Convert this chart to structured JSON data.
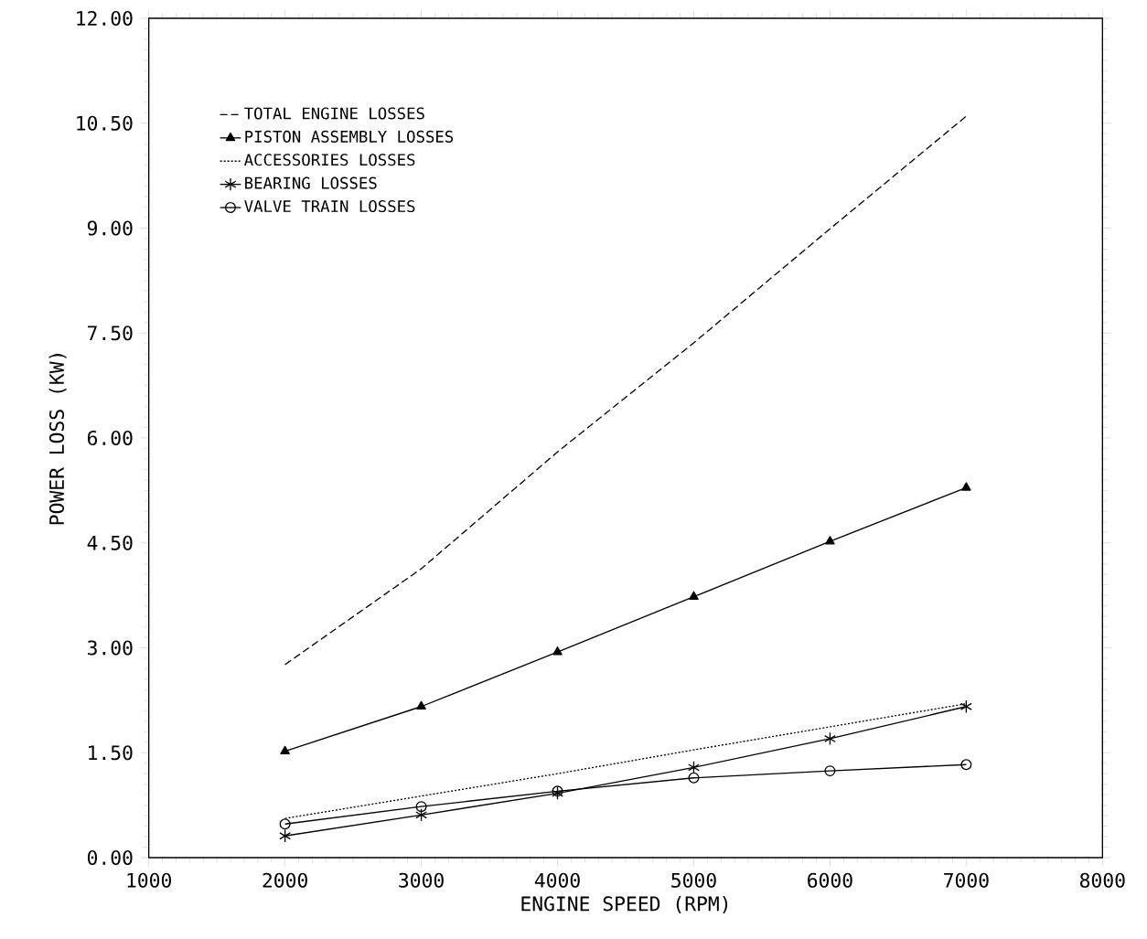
{
  "chart_data": {
    "type": "line",
    "xlabel": "ENGINE SPEED (RPM)",
    "ylabel": "POWER LOSS (KW)",
    "x": [
      2000,
      3000,
      4000,
      5000,
      6000,
      7000
    ],
    "series": [
      {
        "name": "TOTAL ENGINE LOSSES",
        "color": "#000000",
        "line_style": "dashed",
        "marker": "none",
        "values": [
          2.76,
          4.13,
          5.8,
          7.36,
          8.99,
          10.6
        ]
      },
      {
        "name": "PISTON ASSEMBLY LOSSES",
        "color": "#000000",
        "line_style": "solid",
        "marker": "triangle",
        "values": [
          1.52,
          2.16,
          2.94,
          3.73,
          4.52,
          5.29
        ]
      },
      {
        "name": "ACCESSORIES LOSSES",
        "color": "#000000",
        "line_style": "dotted",
        "marker": "none",
        "values": [
          0.56,
          0.88,
          1.2,
          1.54,
          1.87,
          2.2
        ]
      },
      {
        "name": "BEARING LOSSES",
        "color": "#000000",
        "line_style": "solid",
        "marker": "cross",
        "values": [
          0.31,
          0.61,
          0.92,
          1.29,
          1.7,
          2.16
        ]
      },
      {
        "name": "VALVE TRAIN LOSSES",
        "color": "#000000",
        "line_style": "solid",
        "marker": "circle",
        "values": [
          0.48,
          0.73,
          0.95,
          1.14,
          1.24,
          1.33
        ]
      }
    ],
    "xlim": [
      1000,
      8000
    ],
    "xticks": [
      1000,
      2000,
      3000,
      4000,
      5000,
      6000,
      7000,
      8000
    ],
    "ylim": [
      0,
      12
    ],
    "yticks": [
      {
        "value": 0,
        "label": "0.00"
      },
      {
        "value": 1.5,
        "label": "1.50"
      },
      {
        "value": 3,
        "label": "3.00"
      },
      {
        "value": 4.5,
        "label": "4.50"
      },
      {
        "value": 6,
        "label": "6.00"
      },
      {
        "value": 7.5,
        "label": "7.50"
      },
      {
        "value": 9,
        "label": "9.00"
      },
      {
        "value": 10.5,
        "label": "10.50"
      },
      {
        "value": 12,
        "label": "12.00"
      }
    ],
    "legend": "top left",
    "grid": false
  }
}
